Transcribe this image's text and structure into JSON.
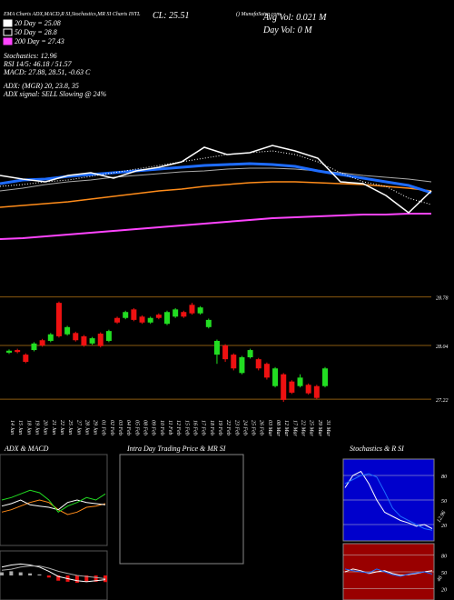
{
  "header": {
    "title": "EMA Charts ADX,MACD,R SI,Stochastics,MR SI Charts INTL",
    "site": "() MunafaSutra.com",
    "close": "CL: 25.51",
    "avg_vol": "Avg Vol: 0.021 M",
    "day_vol": "Day Vol: 0  M"
  },
  "legend": [
    {
      "label": "20 Day = 25.08",
      "color": "#ffffff",
      "fill": true
    },
    {
      "label": "50 Day = 28.8",
      "color": "#ffffff",
      "fill": false
    },
    {
      "label": "200 Day = 27.43",
      "color": "#ff44ff",
      "fill": true
    }
  ],
  "stats": [
    "Stochastics: 12.96",
    "RSI 14/5: 46.18 / 51.57",
    "MACD: 27.88, 28.51, -0.63 C",
    "ADX:  (MGR) 20, 23.8, 35",
    "ADX  signal: SELL Slowing @ 24%"
  ],
  "ma_panel": {
    "ylim": [
      20,
      32
    ],
    "series": [
      {
        "color": "#aaaaaa",
        "width": 1,
        "dotted": false,
        "values": [
          26.0,
          26.3,
          26.7,
          27.0,
          27.2,
          27.5,
          27.7,
          27.9,
          28.1,
          28.2,
          28.4,
          28.5,
          28.5,
          28.4,
          28.2,
          28.0,
          27.7,
          27.5,
          27.3,
          27.0
        ]
      },
      {
        "color": "#ff44ff",
        "width": 2,
        "dotted": false,
        "values": [
          20.7,
          20.8,
          21.0,
          21.2,
          21.4,
          21.6,
          21.8,
          22.0,
          22.2,
          22.4,
          22.6,
          22.8,
          23.0,
          23.1,
          23.2,
          23.3,
          23.4,
          23.4,
          23.5,
          23.5
        ]
      },
      {
        "color": "#ff8c1a",
        "width": 1.5,
        "dotted": false,
        "values": [
          24.2,
          24.4,
          24.6,
          24.8,
          25.1,
          25.4,
          25.7,
          26.0,
          26.2,
          26.5,
          26.7,
          26.9,
          27.0,
          27.0,
          26.9,
          26.8,
          26.7,
          26.5,
          26.3,
          26.0
        ]
      },
      {
        "color": "#1e6cff",
        "width": 3,
        "dotted": false,
        "values": [
          26.8,
          27.2,
          27.3,
          27.6,
          27.8,
          28.0,
          28.2,
          28.4,
          28.6,
          28.8,
          28.9,
          29.0,
          28.9,
          28.7,
          28.2,
          27.8,
          27.4,
          27.0,
          26.6,
          25.8
        ]
      },
      {
        "color": "#ffffff",
        "width": 1,
        "dotted": true,
        "values": [
          26.5,
          26.7,
          27.0,
          27.2,
          27.6,
          28.0,
          28.4,
          28.8,
          29.2,
          29.6,
          30.0,
          30.2,
          30.4,
          30.0,
          29.2,
          28.0,
          27.0,
          26.5,
          25.2,
          24.5
        ]
      },
      {
        "color": "#ffffff",
        "width": 1.5,
        "dotted": false,
        "values": [
          27.7,
          27.3,
          27.0,
          27.7,
          28.0,
          27.4,
          28.2,
          28.6,
          29.2,
          30.8,
          30.0,
          30.2,
          31.0,
          30.4,
          29.6,
          27.0,
          26.8,
          25.5,
          23.6,
          26.0
        ]
      }
    ]
  },
  "price_panel": {
    "ylim": [
      27.0,
      28.9
    ],
    "levels": [
      28.78,
      28.04,
      27.22
    ],
    "dates": [
      "14 Jan",
      "15 Jan",
      "18 Jan",
      "19 Jan",
      "20 Jan",
      "21 Jan",
      "22 Jan",
      "25 Jan",
      "27 Jan",
      "28 Jan",
      "29 Jan",
      "01 Feb",
      "02 Feb",
      "03 Feb",
      "04 Feb",
      "05 Feb",
      "08 Feb",
      "09 Feb",
      "10 Feb",
      "11 Feb",
      "12 Feb",
      "15 Feb",
      "16 Feb",
      "17 Feb",
      "18 Feb",
      "19 Feb",
      "22 Feb",
      "23 Feb",
      "24 Feb",
      "25 Feb",
      "26 Feb",
      "03 Mar",
      "08 Mar",
      "12 Mar",
      "17 Mar",
      "22 Mar",
      "25 Mar",
      "29 Mar",
      "31 Mar"
    ],
    "candles": [
      {
        "o": 27.93,
        "h": 27.98,
        "l": 27.91,
        "c": 27.96
      },
      {
        "o": 27.97,
        "h": 27.99,
        "l": 27.92,
        "c": 27.94
      },
      {
        "o": 27.9,
        "h": 27.92,
        "l": 27.77,
        "c": 27.79
      },
      {
        "o": 27.97,
        "h": 28.09,
        "l": 27.95,
        "c": 28.07
      },
      {
        "o": 28.12,
        "h": 28.14,
        "l": 28.02,
        "c": 28.04
      },
      {
        "o": 28.11,
        "h": 28.23,
        "l": 28.09,
        "c": 28.21
      },
      {
        "o": 28.69,
        "h": 28.71,
        "l": 28.16,
        "c": 28.18
      },
      {
        "o": 28.21,
        "h": 28.34,
        "l": 28.19,
        "c": 28.32
      },
      {
        "o": 28.23,
        "h": 28.25,
        "l": 28.1,
        "c": 28.12
      },
      {
        "o": 28.18,
        "h": 28.2,
        "l": 28.02,
        "c": 28.04
      },
      {
        "o": 28.07,
        "h": 28.17,
        "l": 28.05,
        "c": 28.15
      },
      {
        "o": 28.22,
        "h": 28.24,
        "l": 28.01,
        "c": 28.03
      },
      {
        "o": 28.11,
        "h": 28.28,
        "l": 28.09,
        "c": 28.26
      },
      {
        "o": 28.46,
        "h": 28.48,
        "l": 28.37,
        "c": 28.39
      },
      {
        "o": 28.46,
        "h": 28.57,
        "l": 28.44,
        "c": 28.55
      },
      {
        "o": 28.59,
        "h": 28.61,
        "l": 28.41,
        "c": 28.43
      },
      {
        "o": 28.48,
        "h": 28.5,
        "l": 28.37,
        "c": 28.39
      },
      {
        "o": 28.39,
        "h": 28.48,
        "l": 28.37,
        "c": 28.46
      },
      {
        "o": 28.51,
        "h": 28.53,
        "l": 28.44,
        "c": 28.46
      },
      {
        "o": 28.37,
        "h": 28.57,
        "l": 28.35,
        "c": 28.55
      },
      {
        "o": 28.48,
        "h": 28.61,
        "l": 28.46,
        "c": 28.59
      },
      {
        "o": 28.55,
        "h": 28.57,
        "l": 28.46,
        "c": 28.48
      },
      {
        "o": 28.66,
        "h": 28.69,
        "l": 28.51,
        "c": 28.53
      },
      {
        "o": 28.53,
        "h": 28.64,
        "l": 28.51,
        "c": 28.62
      },
      {
        "o": 28.32,
        "h": 28.45,
        "l": 28.3,
        "c": 28.43
      },
      {
        "o": 27.9,
        "h": 28.13,
        "l": 27.76,
        "c": 28.11
      },
      {
        "o": 28.04,
        "h": 28.06,
        "l": 27.79,
        "c": 27.83
      },
      {
        "o": 27.9,
        "h": 27.92,
        "l": 27.66,
        "c": 27.69
      },
      {
        "o": 27.62,
        "h": 27.88,
        "l": 27.6,
        "c": 27.86
      },
      {
        "o": 27.86,
        "h": 27.99,
        "l": 27.84,
        "c": 27.97
      },
      {
        "o": 27.83,
        "h": 27.85,
        "l": 27.66,
        "c": 27.69
      },
      {
        "o": 27.76,
        "h": 27.78,
        "l": 27.52,
        "c": 27.55
      },
      {
        "o": 27.42,
        "h": 27.71,
        "l": 27.4,
        "c": 27.69
      },
      {
        "o": 27.6,
        "h": 27.62,
        "l": 27.18,
        "c": 27.21
      },
      {
        "o": 27.49,
        "h": 27.51,
        "l": 27.3,
        "c": 27.32
      },
      {
        "o": 27.42,
        "h": 27.6,
        "l": 27.4,
        "c": 27.55
      },
      {
        "o": 27.44,
        "h": 27.46,
        "l": 27.29,
        "c": 27.31
      },
      {
        "o": 27.42,
        "h": 27.44,
        "l": 27.22,
        "c": 27.24
      },
      {
        "o": 27.42,
        "h": 27.71,
        "l": 27.4,
        "c": 27.69
      }
    ]
  },
  "adx_panel": {
    "title": "ADX & MACD",
    "ylim": [
      0,
      60
    ],
    "series": [
      {
        "color": "#ff8c1a",
        "values": [
          20,
          22,
          25,
          28,
          30,
          28,
          22,
          18,
          20,
          24,
          25,
          27
        ]
      },
      {
        "color": "#ffffff",
        "values": [
          25,
          27,
          30,
          26,
          25,
          24,
          22,
          28,
          30,
          28,
          27,
          26
        ]
      },
      {
        "color": "#22dd22",
        "values": [
          30,
          32,
          35,
          38,
          36,
          30,
          20,
          25,
          28,
          32,
          30,
          35
        ]
      }
    ]
  },
  "macd_panel": {
    "ylim": [
      -2,
      2
    ],
    "histogram": [
      0.3,
      0.4,
      0.3,
      0.2,
      0.1,
      -0.2,
      -0.5,
      -0.6,
      -0.7,
      -0.6,
      -0.6,
      -0.63
    ],
    "series": [
      {
        "color": "#ffffff",
        "values": [
          0.8,
          1.0,
          1.1,
          1.0,
          0.8,
          0.4,
          -0.1,
          -0.3,
          -0.5,
          -0.6,
          -0.5,
          -0.4
        ]
      },
      {
        "color": "#aaaaaa",
        "values": [
          0.5,
          0.6,
          0.8,
          0.9,
          0.9,
          0.7,
          0.4,
          0.2,
          0.0,
          -0.1,
          -0.2,
          -0.3
        ]
      }
    ]
  },
  "intraday_panel": {
    "title": "Intra Day Trading Price  & MR   SI"
  },
  "stoch_panel": {
    "title": "Stochastics & R  SI",
    "ylim": [
      0,
      100
    ],
    "yticks": [
      80,
      50,
      20
    ],
    "value_label": "12.96",
    "series": [
      {
        "color": "#ffffff",
        "values": [
          65,
          80,
          85,
          70,
          50,
          35,
          30,
          25,
          22,
          18,
          20,
          15
        ]
      },
      {
        "color": "#1e6cff",
        "values": [
          70,
          75,
          80,
          82,
          78,
          60,
          40,
          30,
          25,
          20,
          15,
          13
        ]
      }
    ]
  },
  "rsi_panel": {
    "ylim": [
      0,
      100
    ],
    "yticks": [
      80,
      50,
      20
    ],
    "value_label": "46",
    "series": [
      {
        "color": "#ffffff",
        "values": [
          50,
          55,
          52,
          47,
          50,
          52,
          47,
          44,
          45,
          47,
          50,
          52
        ]
      },
      {
        "color": "#1e6cff",
        "values": [
          55,
          52,
          50,
          48,
          55,
          50,
          45,
          42,
          46,
          48,
          50,
          46
        ]
      }
    ]
  }
}
